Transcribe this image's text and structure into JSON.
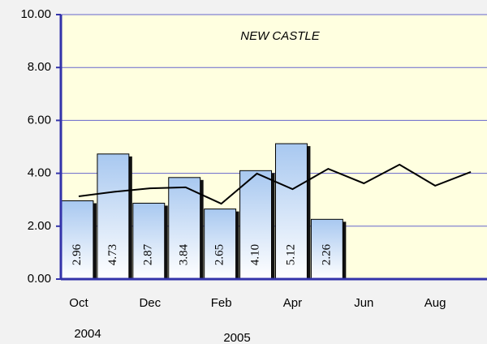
{
  "chart_data": {
    "type": "bar-line",
    "title": "NEW CASTLE",
    "categories": [
      "Oct",
      null,
      "Dec",
      null,
      "Feb",
      null,
      "Apr",
      null,
      "Jun",
      null,
      "Aug",
      null
    ],
    "year_labels": [
      "2004",
      "2005"
    ],
    "series": [
      {
        "type": "bar",
        "color": "#a8c8f0",
        "values": [
          2.96,
          4.73,
          2.87,
          3.84,
          2.65,
          4.1,
          5.12,
          2.26,
          null,
          null,
          null,
          null
        ],
        "value_labels": [
          "2.96",
          "4.73",
          "2.87",
          "3.84",
          "2.65",
          "4.10",
          "5.12",
          "2.26",
          null,
          null,
          null,
          null
        ]
      },
      {
        "type": "line",
        "color": "#000000",
        "values": [
          3.13,
          3.3,
          3.43,
          3.47,
          2.85,
          3.99,
          3.4,
          4.17,
          3.62,
          4.33,
          3.53,
          4.05
        ]
      }
    ],
    "ylim": [
      0,
      10
    ],
    "yticks": [
      {
        "value": 0,
        "label": "0.00"
      },
      {
        "value": 2,
        "label": "2.00"
      },
      {
        "value": 4,
        "label": "4.00"
      },
      {
        "value": 6,
        "label": "6.00"
      },
      {
        "value": 8,
        "label": "8.00"
      },
      {
        "value": 10,
        "label": "10.00"
      }
    ],
    "grid": true
  }
}
